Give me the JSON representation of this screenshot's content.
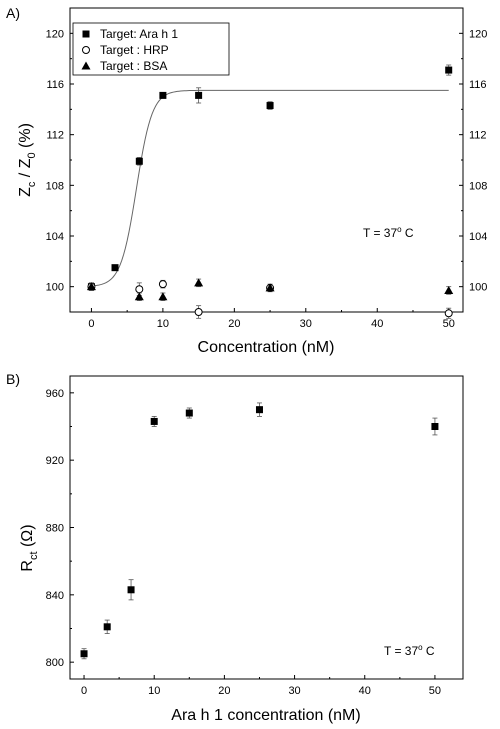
{
  "chart_data": [
    {
      "panel_label": "A)",
      "type": "scatter",
      "xlabel": "Concentration (nM)",
      "ylabel": {
        "main": "Z",
        "sub1": "c",
        "sep": " / Z",
        "sub2": "0",
        "tail": " (%)"
      },
      "xlim": [
        -3,
        52
      ],
      "ylim": [
        98,
        122
      ],
      "xticks": [
        0,
        10,
        20,
        30,
        40,
        50
      ],
      "yticks": [
        100,
        104,
        108,
        112,
        116,
        120
      ],
      "annotation": {
        "text": "T = 37",
        "sup": "o",
        "tail": " C"
      },
      "legend_position": "top-left",
      "series": [
        {
          "name": "Target: Ara h 1",
          "marker": "square-filled",
          "x": [
            0,
            3.3,
            6.7,
            10,
            15,
            25,
            50
          ],
          "y": [
            100.0,
            101.5,
            109.9,
            115.1,
            115.1,
            114.3,
            117.1
          ],
          "err": [
            0.3,
            0.2,
            0.3,
            0.2,
            0.6,
            0.3,
            0.4
          ]
        },
        {
          "name": "Target : HRP",
          "marker": "circle-open",
          "x": [
            0,
            6.7,
            10,
            15,
            25,
            50
          ],
          "y": [
            100.0,
            99.8,
            100.2,
            98.0,
            99.9,
            97.9
          ],
          "err": [
            0.3,
            0.5,
            0.3,
            0.5,
            0.3,
            0.4
          ]
        },
        {
          "name": "Target : BSA",
          "marker": "triangle-filled",
          "x": [
            0,
            6.7,
            10,
            15,
            25,
            50
          ],
          "y": [
            100.0,
            99.2,
            99.2,
            100.3,
            99.9,
            99.7
          ],
          "err": [
            0.3,
            0.3,
            0.3,
            0.3,
            0.2,
            0.3
          ]
        }
      ],
      "fit_curve": {
        "type": "sigmoid",
        "bottom": 100.0,
        "top": 115.5,
        "x0": 6.3,
        "width": 1.1,
        "x_range": [
          0,
          50
        ]
      }
    },
    {
      "panel_label": "B)",
      "type": "scatter",
      "xlabel": "Ara h 1 concentration (nM)",
      "ylabel": {
        "main": "R",
        "sub1": "ct",
        "tail": " (Ω)"
      },
      "xlim": [
        -2,
        54
      ],
      "ylim": [
        790,
        970
      ],
      "xticks": [
        0,
        10,
        20,
        30,
        40,
        50
      ],
      "yticks": [
        800,
        840,
        880,
        920,
        960
      ],
      "annotation": {
        "text": "T = 37",
        "sup": "o",
        "tail": " C"
      },
      "series": [
        {
          "name": "",
          "marker": "square-filled",
          "x": [
            0,
            3.3,
            6.7,
            10,
            15,
            25,
            50
          ],
          "y": [
            805,
            821,
            843,
            943,
            948,
            950,
            940
          ],
          "err": [
            3,
            4,
            6,
            3,
            3,
            4,
            5
          ]
        }
      ]
    }
  ]
}
